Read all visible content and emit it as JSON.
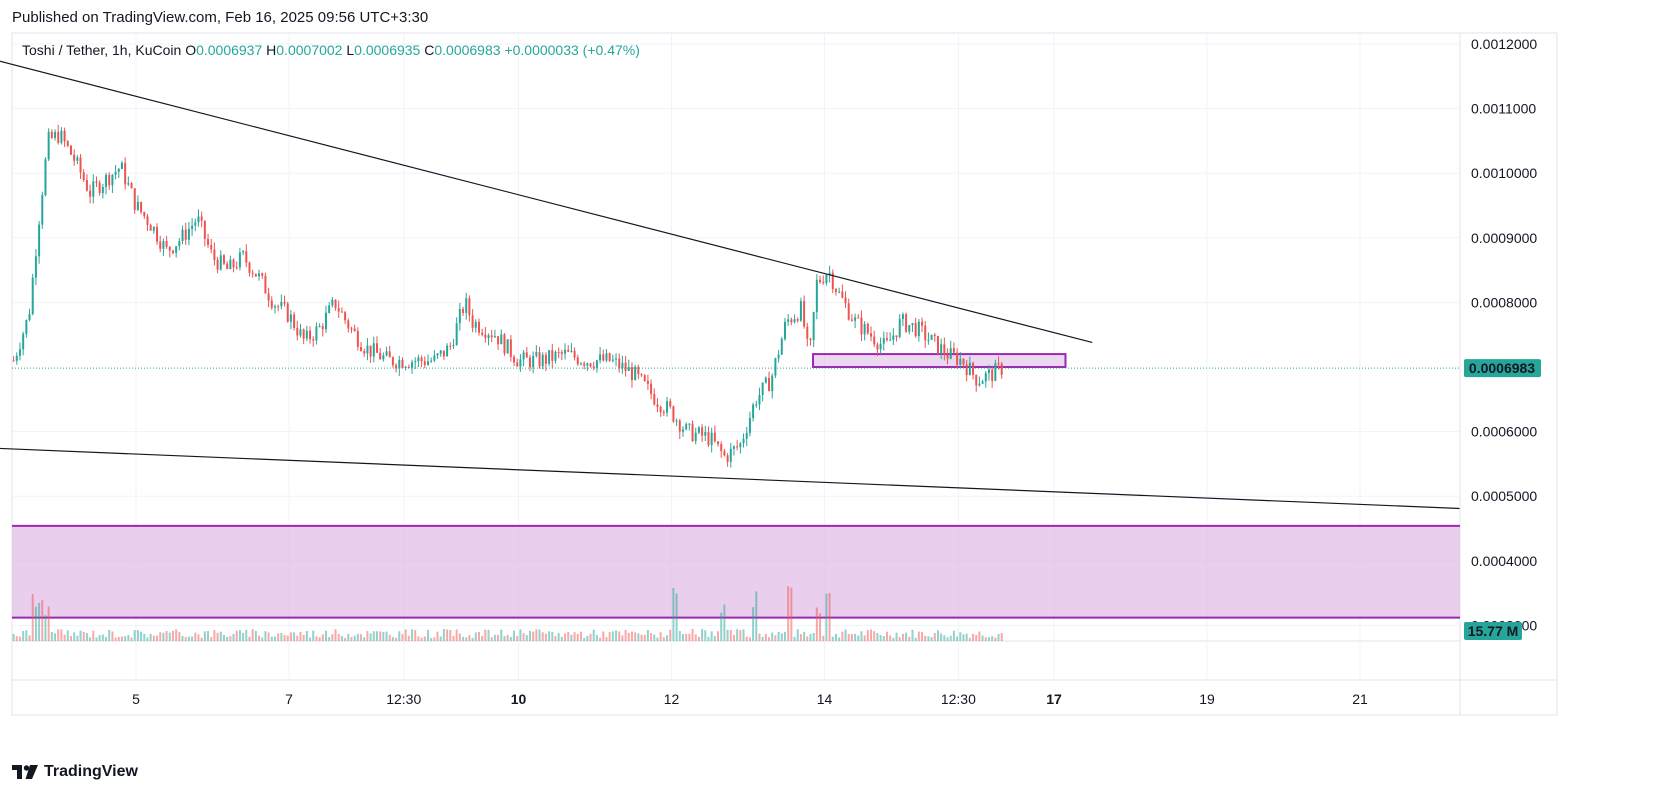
{
  "page": {
    "published_note": "Published on TradingView.com, Feb 16, 2025 09:56 UTC+3:30"
  },
  "brand": {
    "name": "TradingView",
    "logo_icon": "tradingview-logo-icon"
  },
  "legend": {
    "symbol": "Toshi / Tether, 1h, KuCoin",
    "o_label": "O",
    "o_value": "0.0006937",
    "h_label": "H",
    "h_value": "0.0007002",
    "l_label": "L",
    "l_value": "0.0006935",
    "c_label": "C",
    "c_value": "0.0006983",
    "change": "+0.0000033 (+0.47%)"
  },
  "colors": {
    "up": "#26a69a",
    "down": "#ef5350",
    "zone_stroke": "#9c27b0",
    "zone_fill": "#e1bee7",
    "trend": "#131722"
  },
  "chart_data": {
    "type": "candlestick",
    "symbol": "Toshi / Tether",
    "interval": "1h",
    "exchange": "KuCoin",
    "y_axis": {
      "min": 0.0003,
      "max": 0.0012,
      "ticks": [
        "0.0012000",
        "0.0011000",
        "0.0010000",
        "0.0009000",
        "0.0008000",
        "0.0006000",
        "0.0005000",
        "0.0004000",
        "0.0003000"
      ]
    },
    "x_axis": {
      "ticks": [
        {
          "label": "5",
          "x": 5.0,
          "bold": false
        },
        {
          "label": "7",
          "x": 7.0,
          "bold": false
        },
        {
          "label": "12:30",
          "x": 8.5,
          "bold": false
        },
        {
          "label": "10",
          "x": 10.0,
          "bold": true
        },
        {
          "label": "12",
          "x": 12.0,
          "bold": false
        },
        {
          "label": "14",
          "x": 14.0,
          "bold": false
        },
        {
          "label": "12:30",
          "x": 15.75,
          "bold": false
        },
        {
          "label": "17",
          "x": 17.0,
          "bold": true
        },
        {
          "label": "19",
          "x": 19.0,
          "bold": false
        },
        {
          "label": "21",
          "x": 21.0,
          "bold": false
        }
      ]
    },
    "price_path": [
      [
        3.4,
        0.00071
      ],
      [
        3.6,
        0.00078
      ],
      [
        3.75,
        0.00095
      ],
      [
        3.85,
        0.00105
      ],
      [
        4.0,
        0.00106
      ],
      [
        4.2,
        0.00102
      ],
      [
        4.4,
        0.00097
      ],
      [
        4.6,
        0.00099
      ],
      [
        4.8,
        0.00101
      ],
      [
        5.0,
        0.00095
      ],
      [
        5.2,
        0.00092
      ],
      [
        5.4,
        0.00088
      ],
      [
        5.6,
        0.0009
      ],
      [
        5.8,
        0.00093
      ],
      [
        6.0,
        0.00087
      ],
      [
        6.2,
        0.00085
      ],
      [
        6.4,
        0.00087
      ],
      [
        6.6,
        0.00084
      ],
      [
        6.8,
        0.0008
      ],
      [
        7.0,
        0.00078
      ],
      [
        7.2,
        0.00074
      ],
      [
        7.4,
        0.00076
      ],
      [
        7.6,
        0.0008
      ],
      [
        7.8,
        0.00076
      ],
      [
        8.0,
        0.00073
      ],
      [
        8.3,
        0.00071
      ],
      [
        8.6,
        0.00071
      ],
      [
        8.9,
        0.00071
      ],
      [
        9.1,
        0.00073
      ],
      [
        9.3,
        0.0008
      ],
      [
        9.4,
        0.00077
      ],
      [
        9.7,
        0.00075
      ],
      [
        10.0,
        0.00071
      ],
      [
        10.3,
        0.00071
      ],
      [
        10.6,
        0.00072
      ],
      [
        10.9,
        0.00071
      ],
      [
        11.2,
        0.00071
      ],
      [
        11.5,
        0.00069
      ],
      [
        11.8,
        0.00065
      ],
      [
        12.0,
        0.00063
      ],
      [
        12.2,
        0.0006
      ],
      [
        12.5,
        0.00059
      ],
      [
        12.7,
        0.00056
      ],
      [
        12.9,
        0.00058
      ],
      [
        13.1,
        0.00065
      ],
      [
        13.3,
        0.00068
      ],
      [
        13.5,
        0.00077
      ],
      [
        13.7,
        0.00079
      ],
      [
        13.8,
        0.00071
      ],
      [
        13.9,
        0.00083
      ],
      [
        14.05,
        0.00085
      ],
      [
        14.2,
        0.00081
      ],
      [
        14.4,
        0.00077
      ],
      [
        14.6,
        0.00075
      ],
      [
        14.8,
        0.00073
      ],
      [
        15.0,
        0.00077
      ],
      [
        15.2,
        0.00076
      ],
      [
        15.4,
        0.00074
      ],
      [
        15.6,
        0.00072
      ],
      [
        15.8,
        0.00071
      ],
      [
        16.0,
        0.00068
      ],
      [
        16.2,
        0.00069
      ],
      [
        16.35,
        0.0007
      ]
    ],
    "volume": {
      "last_label": "15.77 M",
      "spikes": [
        3.65,
        3.75,
        3.85,
        12.05,
        12.65,
        13.1,
        13.55,
        13.9,
        14.05
      ]
    },
    "last_price": {
      "value": 0.0006983,
      "label": "0.0006983"
    },
    "drawings": {
      "upper_trendline": {
        "from": [
          3.0,
          0.00118
        ],
        "to": [
          17.5,
          0.000738
        ]
      },
      "lower_trendline": {
        "from": [
          3.0,
          0.000575
        ],
        "to": [
          22.3,
          0.000481
        ]
      },
      "resistance_box": {
        "x0": 13.85,
        "x1": 17.15,
        "y0": 0.0007,
        "y1": 0.00072
      },
      "lower_zone": {
        "y0": 0.000312,
        "y1": 0.000454
      }
    }
  }
}
